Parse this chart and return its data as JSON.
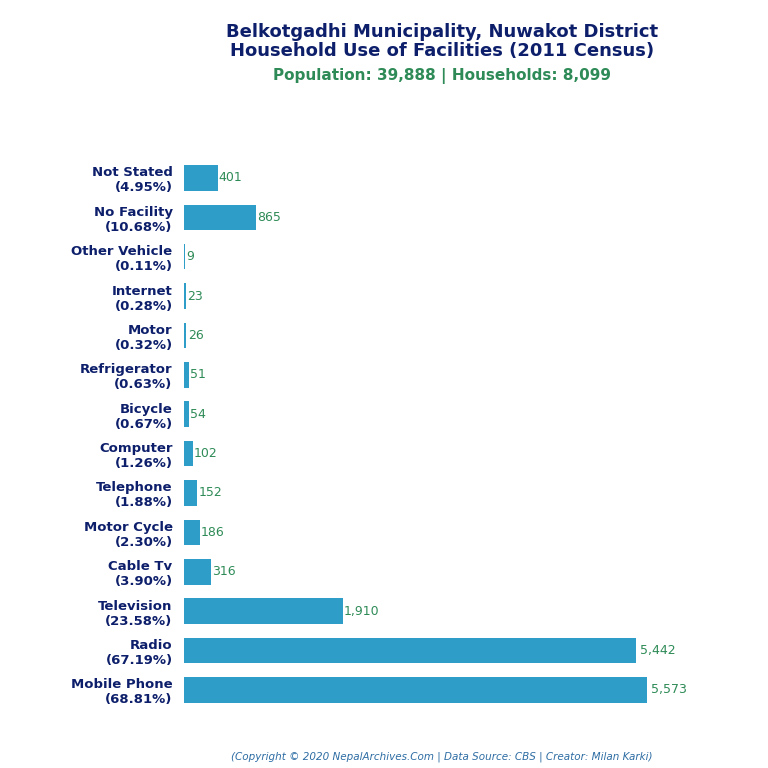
{
  "title_line1": "Belkotgadhi Municipality, Nuwakot District",
  "title_line2": "Household Use of Facilities (2011 Census)",
  "subtitle": "Population: 39,888 | Households: 8,099",
  "copyright": "(Copyright © 2020 NepalArchives.Com | Data Source: CBS | Creator: Milan Karki)",
  "categories_top_to_bottom": [
    "Not Stated\n(4.95%)",
    "No Facility\n(10.68%)",
    "Other Vehicle\n(0.11%)",
    "Internet\n(0.28%)",
    "Motor\n(0.32%)",
    "Refrigerator\n(0.63%)",
    "Bicycle\n(0.67%)",
    "Computer\n(1.26%)",
    "Telephone\n(1.88%)",
    "Motor Cycle\n(2.30%)",
    "Cable Tv\n(3.90%)",
    "Television\n(23.58%)",
    "Radio\n(67.19%)",
    "Mobile Phone\n(68.81%)"
  ],
  "values_top_to_bottom": [
    401,
    865,
    9,
    23,
    26,
    51,
    54,
    102,
    152,
    186,
    316,
    1910,
    5442,
    5573
  ],
  "value_labels_top_to_bottom": [
    "401",
    "865",
    "9",
    "23",
    "26",
    "51",
    "54",
    "102",
    "152",
    "186",
    "316",
    "1,910",
    "5,442",
    "5,573"
  ],
  "bar_color": "#2E9DC8",
  "title_color": "#0D1F6B",
  "subtitle_color": "#2E8B57",
  "value_color": "#2E8B57",
  "copyright_color": "#2E6DA4",
  "background_color": "#FFFFFF",
  "xlim": [
    0,
    6200
  ],
  "figsize": [
    7.68,
    7.68
  ],
  "dpi": 100
}
